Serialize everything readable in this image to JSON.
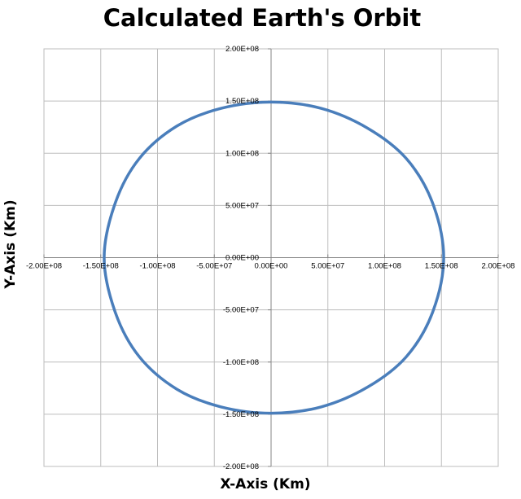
{
  "chart_data": {
    "type": "scatter",
    "title": "Calculated Earth's Orbit",
    "xlabel": "X-Axis (Km)",
    "ylabel": "Y-Axis (Km)",
    "xlim": [
      -200000000,
      200000000
    ],
    "ylim": [
      -200000000,
      200000000
    ],
    "x_ticks": [
      -200000000,
      -150000000,
      -100000000,
      -50000000,
      0,
      50000000,
      100000000,
      150000000,
      200000000
    ],
    "y_ticks": [
      -200000000,
      -150000000,
      -100000000,
      -50000000,
      0,
      50000000,
      100000000,
      150000000,
      200000000
    ],
    "x_tick_labels": [
      "-2.00E+08",
      "-1.50E+08",
      "-1.00E+08",
      "-5.00E+07",
      "0.00E+00",
      "5.00E+07",
      "1.00E+08",
      "1.50E+08",
      "2.00E+08"
    ],
    "y_tick_labels": [
      "-2.00E+08",
      "-1.50E+08",
      "-1.00E+08",
      "-5.00E+07",
      "0.00E+00",
      "5.00E+07",
      "1.00E+08",
      "1.50E+08",
      "2.00E+08"
    ],
    "grid": true,
    "line_color": "#4a7ebb",
    "series": [
      {
        "name": "",
        "x": [
          152000000,
          142000000,
          119000000,
          85000000,
          44000000,
          0,
          -44000000,
          -83000000,
          -116000000,
          -137000000,
          -147000000,
          -137000000,
          -116000000,
          -83000000,
          -44000000,
          0,
          44000000,
          85000000,
          119000000,
          142000000,
          152000000
        ],
        "y": [
          0,
          53000000,
          95000000,
          124000000,
          143000000,
          149000000,
          143000000,
          126000000,
          95000000,
          53000000,
          0,
          -53000000,
          -95000000,
          -126000000,
          -143000000,
          -149000000,
          -143000000,
          -124000000,
          -95000000,
          -53000000,
          0
        ]
      }
    ]
  }
}
